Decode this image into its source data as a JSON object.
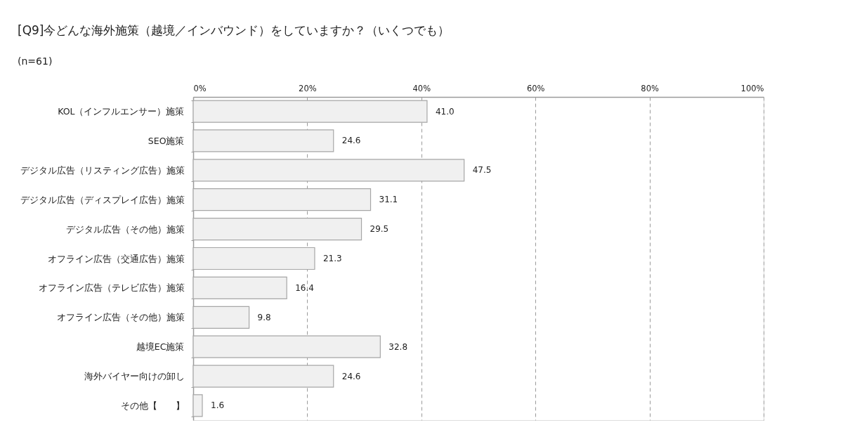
{
  "chart_data": {
    "type": "bar",
    "orientation": "horizontal",
    "title": "[Q9]今どんな海外施策（越境／インバウンド）をしていますか？（いくつでも）",
    "subtitle": "(n=61)",
    "categories": [
      "KOL（インフルエンサー）施策",
      "SEO施策",
      "デジタル広告（リスティング広告）施策",
      "デジタル広告（ディスプレイ広告）施策",
      "デジタル広告（その他）施策",
      "オフライン広告（交通広告）施策",
      "オフライン広告（テレビ広告）施策",
      "オフライン広告（その他）施策",
      "越境EC施策",
      "海外バイヤー向けの卸し",
      "その他【　　】"
    ],
    "values": [
      41.0,
      24.6,
      47.5,
      31.1,
      29.5,
      21.3,
      16.4,
      9.8,
      32.8,
      24.6,
      1.6
    ],
    "value_labels": [
      "41.0",
      "24.6",
      "47.5",
      "31.1",
      "29.5",
      "21.3",
      "16.4",
      "9.8",
      "32.8",
      "24.6",
      "1.6"
    ],
    "color": "#f0f0f0",
    "xlim": [
      0,
      100
    ],
    "xticks": [
      {
        "value": 0,
        "label": "0%"
      },
      {
        "value": 20,
        "label": "20%"
      },
      {
        "value": 40,
        "label": "40%"
      },
      {
        "value": 60,
        "label": "60%"
      },
      {
        "value": 80,
        "label": "80%"
      },
      {
        "value": 100,
        "label": "100%"
      }
    ],
    "grid": "x"
  }
}
